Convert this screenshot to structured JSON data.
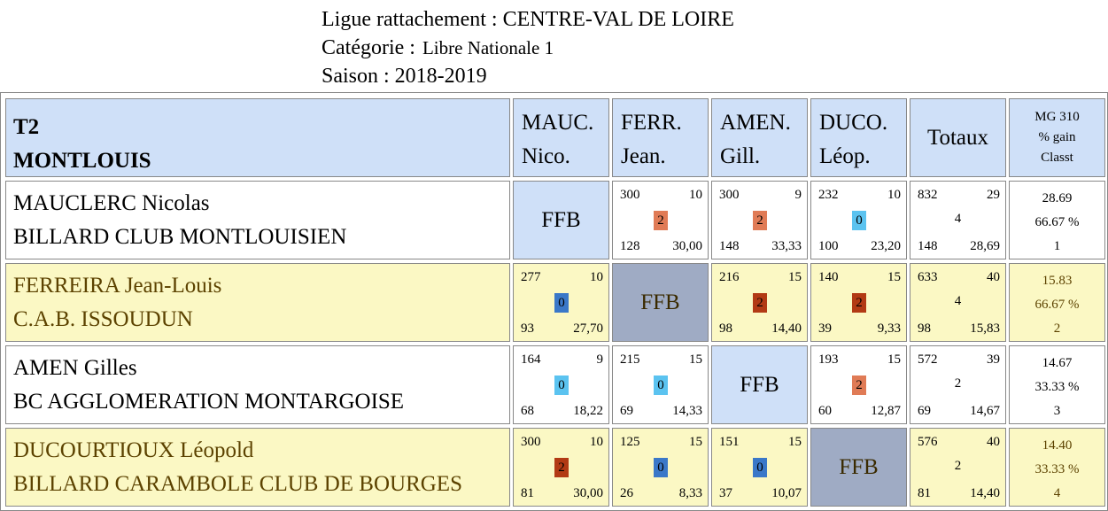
{
  "header": {
    "ligue": "Ligue rattachement : CENTRE-VAL DE LOIRE",
    "categorie_label": "Catégorie :",
    "categorie_value": "Libre Nationale 1",
    "saison": "Saison : 2018-2019"
  },
  "team": {
    "code": "T2",
    "name": "MONTLOUIS"
  },
  "columns": [
    {
      "l1": "MAUC.",
      "l2": "Nico."
    },
    {
      "l1": "FERR.",
      "l2": "Jean."
    },
    {
      "l1": "AMEN.",
      "l2": "Gill."
    },
    {
      "l1": "DUCO.",
      "l2": "Léop."
    }
  ],
  "totals_header": "Totaux",
  "mg_header": {
    "l1": "MG 310",
    "l2": "% gain",
    "l3": "Classt"
  },
  "colors": {
    "orange": "#e07b56",
    "red": "#b23a14",
    "lightblue": "#5bc3f0",
    "darkblue": "#3a78c8"
  },
  "rows": [
    {
      "player": "MAUCLERC Nicolas",
      "club": "BILLARD CLUB MONTLOUISIEN",
      "ffb": "FFB",
      "cells": [
        null,
        {
          "tl": "300",
          "tr": "10",
          "mid": "2",
          "bl": "128",
          "br": "30,00",
          "color": "orange"
        },
        {
          "tl": "300",
          "tr": "9",
          "mid": "2",
          "bl": "148",
          "br": "33,33",
          "color": "orange"
        },
        {
          "tl": "232",
          "tr": "10",
          "mid": "0",
          "bl": "100",
          "br": "23,20",
          "color": "lightblue"
        }
      ],
      "totals": {
        "tl": "832",
        "tr": "29",
        "mid": "4",
        "bl": "148",
        "br": "28,69"
      },
      "mg": {
        "avg": "28.69",
        "pct": "66.67 %",
        "rank": "1"
      }
    },
    {
      "player": "FERREIRA Jean-Louis",
      "club": "C.A.B. ISSOUDUN",
      "ffb": "FFB",
      "cells": [
        {
          "tl": "277",
          "tr": "10",
          "mid": "0",
          "bl": "93",
          "br": "27,70",
          "color": "darkblue"
        },
        null,
        {
          "tl": "216",
          "tr": "15",
          "mid": "2",
          "bl": "98",
          "br": "14,40",
          "color": "red"
        },
        {
          "tl": "140",
          "tr": "15",
          "mid": "2",
          "bl": "39",
          "br": "9,33",
          "color": "red"
        }
      ],
      "totals": {
        "tl": "633",
        "tr": "40",
        "mid": "4",
        "bl": "98",
        "br": "15,83"
      },
      "mg": {
        "avg": "15.83",
        "pct": "66.67 %",
        "rank": "2"
      }
    },
    {
      "player": "AMEN Gilles",
      "club": "BC AGGLOMERATION MONTARGOISE",
      "ffb": "FFB",
      "cells": [
        {
          "tl": "164",
          "tr": "9",
          "mid": "0",
          "bl": "68",
          "br": "18,22",
          "color": "lightblue"
        },
        {
          "tl": "215",
          "tr": "15",
          "mid": "0",
          "bl": "69",
          "br": "14,33",
          "color": "lightblue"
        },
        null,
        {
          "tl": "193",
          "tr": "15",
          "mid": "2",
          "bl": "60",
          "br": "12,87",
          "color": "orange"
        }
      ],
      "totals": {
        "tl": "572",
        "tr": "39",
        "mid": "2",
        "bl": "69",
        "br": "14,67"
      },
      "mg": {
        "avg": "14.67",
        "pct": "33.33 %",
        "rank": "3"
      }
    },
    {
      "player": "DUCOURTIOUX Léopold",
      "club": "BILLARD CARAMBOLE CLUB DE BOURGES",
      "ffb": "FFB",
      "cells": [
        {
          "tl": "300",
          "tr": "10",
          "mid": "2",
          "bl": "81",
          "br": "30,00",
          "color": "red"
        },
        {
          "tl": "125",
          "tr": "15",
          "mid": "0",
          "bl": "26",
          "br": "8,33",
          "color": "darkblue"
        },
        {
          "tl": "151",
          "tr": "15",
          "mid": "0",
          "bl": "37",
          "br": "10,07",
          "color": "darkblue"
        },
        null
      ],
      "totals": {
        "tl": "576",
        "tr": "40",
        "mid": "2",
        "bl": "81",
        "br": "14,40"
      },
      "mg": {
        "avg": "14.40",
        "pct": "33.33 %",
        "rank": "4"
      }
    }
  ]
}
